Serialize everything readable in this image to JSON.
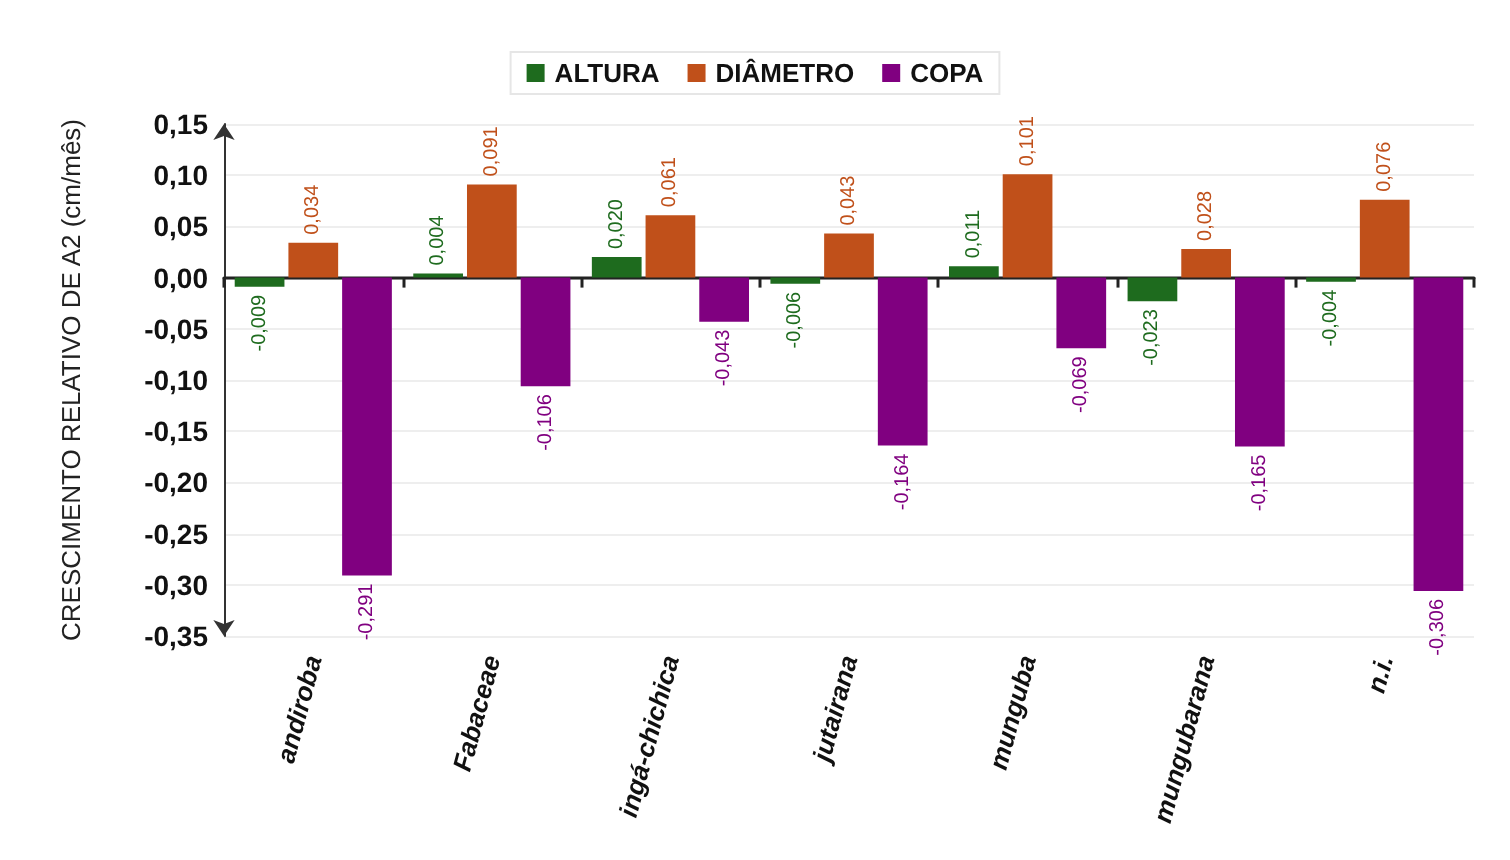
{
  "chart_data": {
    "type": "bar",
    "ylabel": "CRESCIMENTO RELATIVO DE A2 (cm/mês)",
    "categories": [
      "andiroba",
      "Fabaceae",
      "ingá-chichica",
      "jutairana",
      "munguba",
      "mungubarana",
      "n.i."
    ],
    "series": [
      {
        "name": "ALTURA",
        "color": "#1e6b1e",
        "values": [
          -0.009,
          0.004,
          0.02,
          -0.006,
          0.011,
          -0.023,
          -0.004
        ],
        "value_labels": [
          "-0,009",
          "0,004",
          "0,020",
          "-0,006",
          "0,011",
          "-0,023",
          "-0,004"
        ]
      },
      {
        "name": "DIÂMETRO",
        "color": "#c0501a",
        "values": [
          0.034,
          0.091,
          0.061,
          0.043,
          0.101,
          0.028,
          0.076
        ],
        "value_labels": [
          "0,034",
          "0,091",
          "0,061",
          "0,043",
          "0,101",
          "0,028",
          "0,076"
        ]
      },
      {
        "name": "COPA",
        "color": "#800080",
        "values": [
          -0.291,
          -0.106,
          -0.043,
          -0.164,
          -0.069,
          -0.165,
          -0.306
        ],
        "value_labels": [
          "-0,291",
          "-0,106",
          "-0,043",
          "-0,164",
          "-0,069",
          "-0,165",
          "-0,306"
        ]
      }
    ],
    "ylim": [
      -0.35,
      0.15
    ],
    "yticks": [
      {
        "value": -0.35,
        "label": "-0,35"
      },
      {
        "value": -0.3,
        "label": "-0,30"
      },
      {
        "value": -0.25,
        "label": "-0,25"
      },
      {
        "value": -0.2,
        "label": "-0,20"
      },
      {
        "value": -0.15,
        "label": "-0,15"
      },
      {
        "value": -0.1,
        "label": "-0,10"
      },
      {
        "value": -0.05,
        "label": "-0,05"
      },
      {
        "value": 0,
        "label": "0,00"
      },
      {
        "value": 0.05,
        "label": "0,05"
      },
      {
        "value": 0.1,
        "label": "0,10"
      },
      {
        "value": 0.15,
        "label": "0,15"
      }
    ],
    "grid": "y",
    "legend": "top"
  }
}
